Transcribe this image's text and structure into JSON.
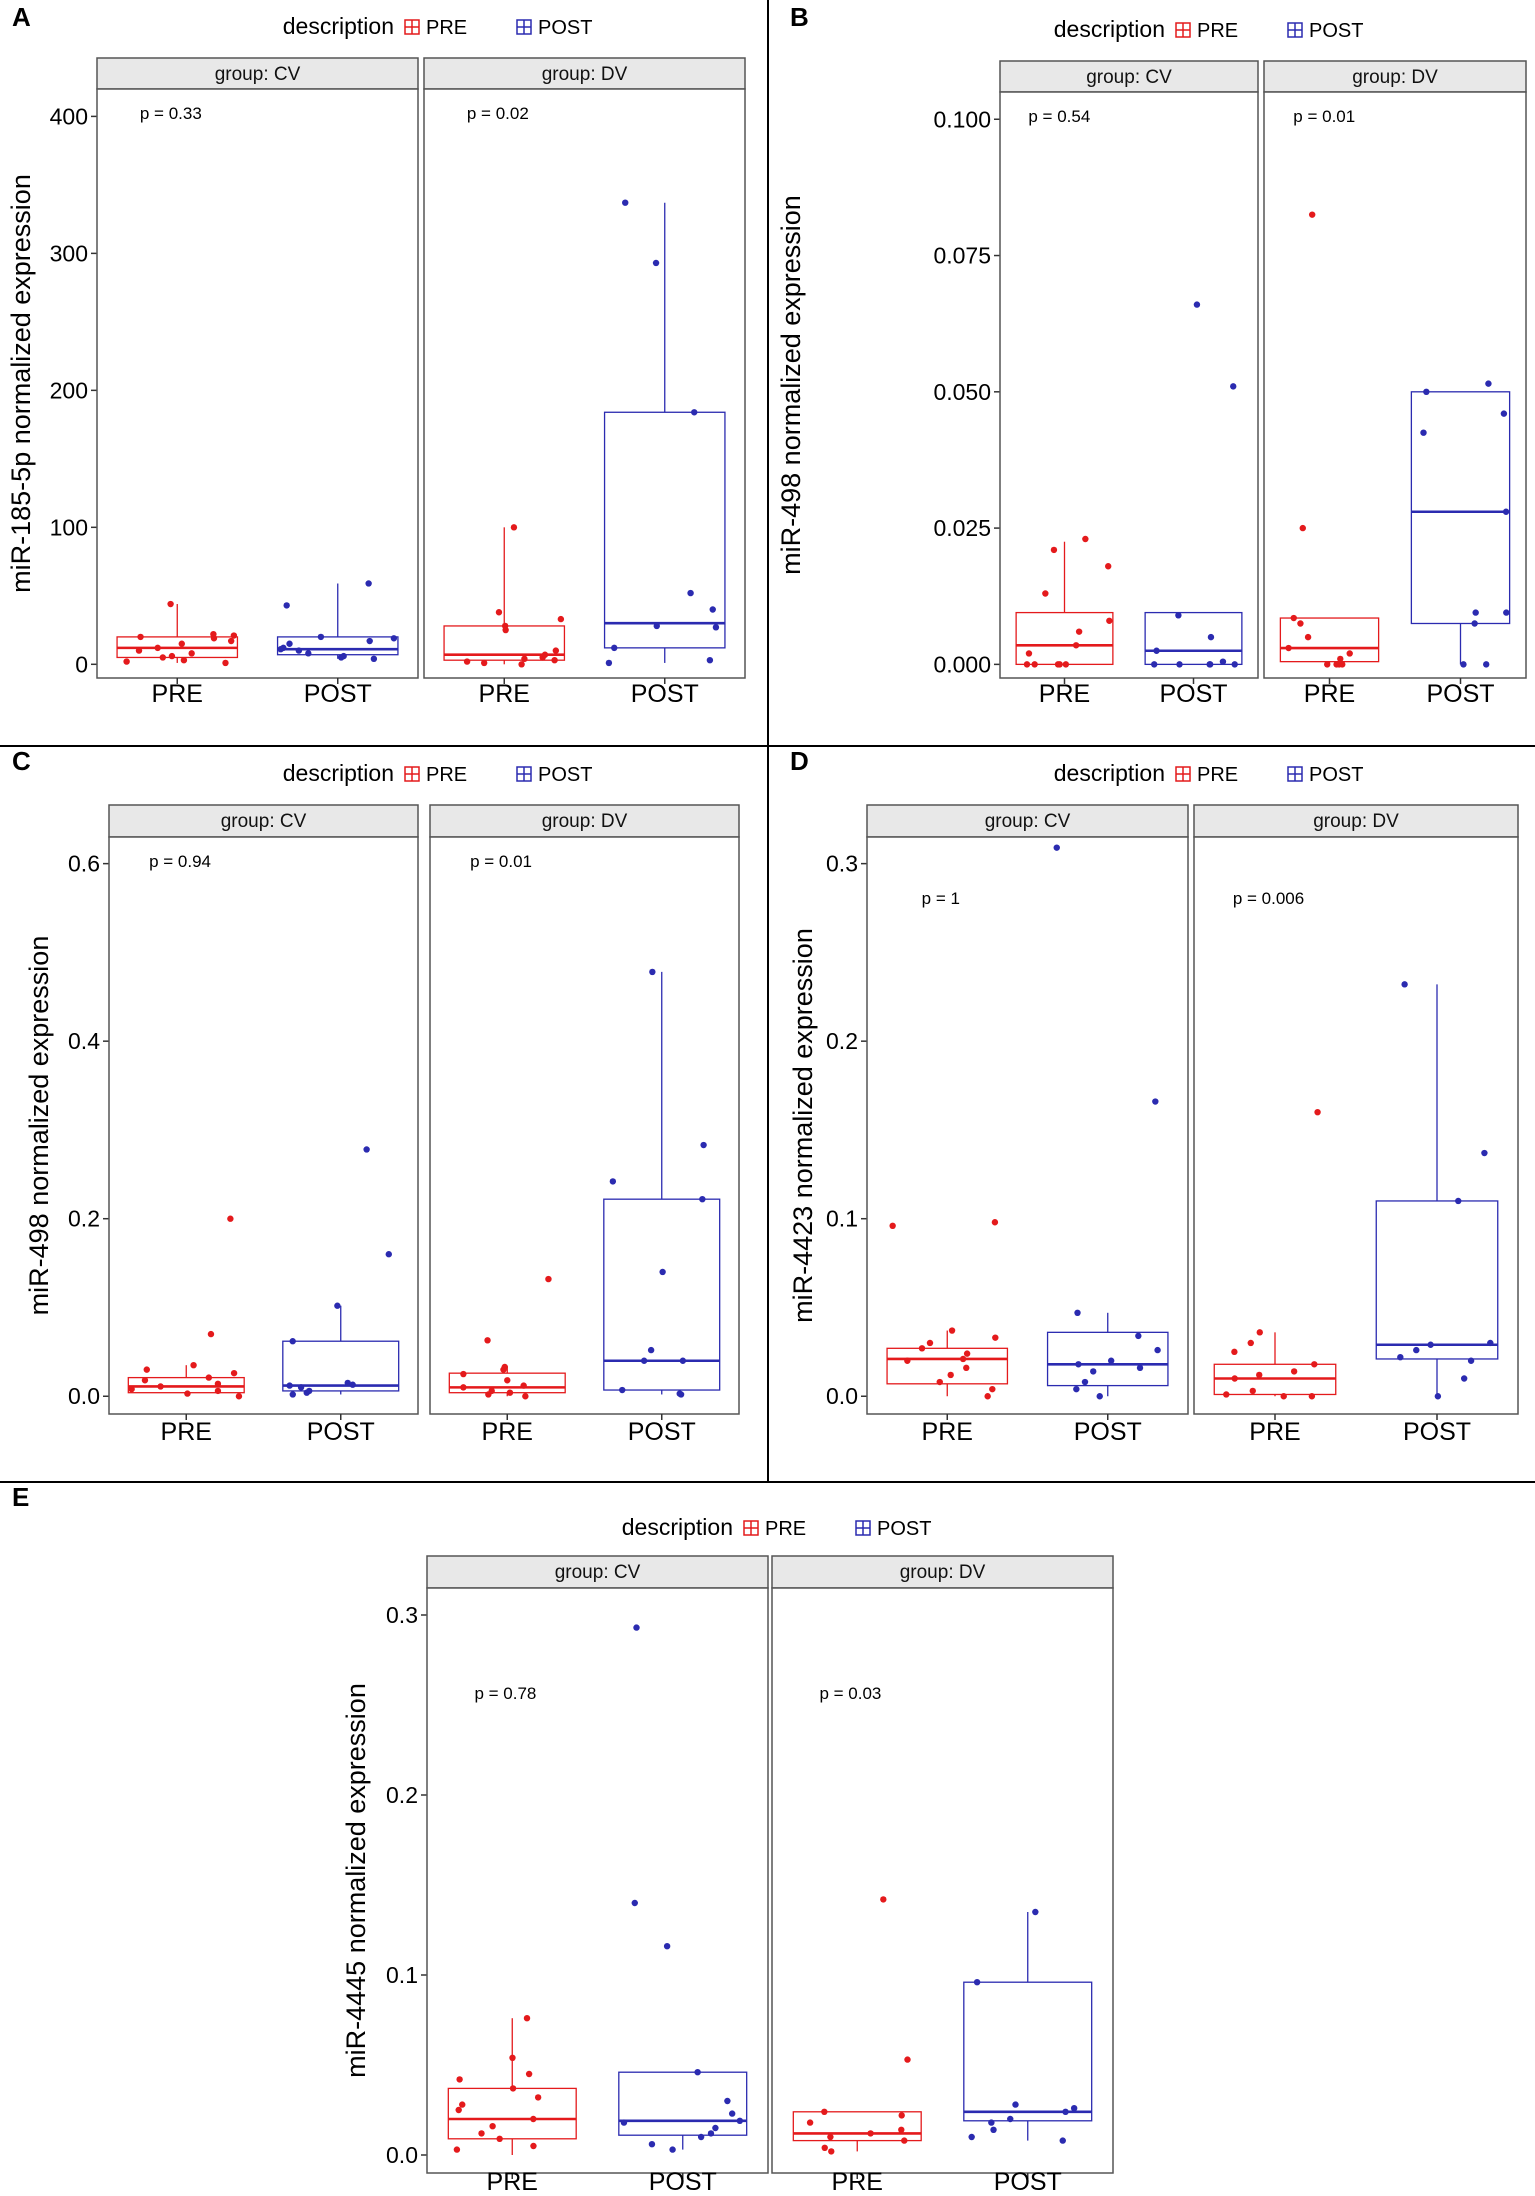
{
  "legend": {
    "title": "description",
    "pre_label": "PRE",
    "post_label": "POST"
  },
  "colors": {
    "pre": "#e41a1c",
    "post": "#2b2bb0",
    "strip": "#e8e8e8",
    "border": "#555555",
    "divider": "#000000"
  },
  "chart_data": [
    {
      "panel": "A",
      "type": "boxplot",
      "ylabel": "miR-185-5p normalized expression",
      "ylim": [
        -10,
        420
      ],
      "yticks": [
        0,
        100,
        200,
        300,
        400
      ],
      "yticklabels": [
        "0",
        "100",
        "200",
        "300",
        "400"
      ],
      "categories": [
        "PRE",
        "POST"
      ],
      "facets": [
        {
          "title": "group: CV",
          "p_label": "p = 0.33",
          "pre": {
            "q1": 5,
            "median": 12,
            "q3": 20,
            "whisker_low": 1,
            "whisker_high": 44,
            "points": [
              1,
              2,
              3,
              5,
              6,
              8,
              10,
              12,
              15,
              17,
              19,
              20,
              21,
              22,
              44
            ]
          },
          "post": {
            "q1": 7,
            "median": 11,
            "q3": 20,
            "whisker_low": 4,
            "whisker_high": 59,
            "points": [
              4,
              5,
              6,
              8,
              10,
              11,
              12,
              15,
              17,
              19,
              20,
              43,
              59
            ]
          }
        },
        {
          "title": "group: DV",
          "p_label": "p = 0.02",
          "pre": {
            "q1": 3,
            "median": 7,
            "q3": 28,
            "whisker_low": 0,
            "whisker_high": 100,
            "points": [
              0,
              1,
              2,
              3,
              4,
              5,
              7,
              10,
              25,
              28,
              33,
              38,
              100
            ]
          },
          "post": {
            "q1": 12,
            "median": 30,
            "q3": 184,
            "whisker_low": 1,
            "whisker_high": 337,
            "points": [
              1,
              3,
              12,
              27,
              28,
              40,
              52,
              184,
              293,
              337
            ]
          }
        }
      ]
    },
    {
      "panel": "B",
      "type": "boxplot",
      "ylabel": "miR-498 normalized expression",
      "ylim": [
        -0.0025,
        0.105
      ],
      "yticks": [
        0,
        0.025,
        0.05,
        0.075,
        0.1
      ],
      "yticklabels": [
        "0.000",
        "0.025",
        "0.050",
        "0.075",
        "0.100"
      ],
      "categories": [
        "PRE",
        "POST"
      ],
      "facets": [
        {
          "title": "group: CV",
          "p_label": "p = 0.54",
          "pre": {
            "q1": 0,
            "median": 0.0035,
            "q3": 0.0095,
            "whisker_low": 0,
            "whisker_high": 0.0225,
            "points": [
              0,
              0,
              0,
              0,
              0,
              0.002,
              0.0035,
              0.006,
              0.008,
              0.013,
              0.018,
              0.021,
              0.023
            ]
          },
          "post": {
            "q1": 0,
            "median": 0.0025,
            "q3": 0.0095,
            "whisker_low": 0,
            "whisker_high": 0.0095,
            "points": [
              0,
              0,
              0,
              0,
              0,
              0.0005,
              0.0025,
              0.005,
              0.009,
              0.051,
              0.066
            ]
          }
        },
        {
          "title": "group: DV",
          "p_label": "p = 0.01",
          "pre": {
            "q1": 0.0005,
            "median": 0.003,
            "q3": 0.0085,
            "whisker_low": 0,
            "whisker_high": 0.0085,
            "points": [
              0,
              0,
              0,
              0,
              0.001,
              0.002,
              0.003,
              0.005,
              0.0075,
              0.0085,
              0.025,
              0.0825
            ]
          },
          "post": {
            "q1": 0.0075,
            "median": 0.028,
            "q3": 0.05,
            "whisker_low": 0,
            "whisker_high": 0.05,
            "points": [
              0,
              0,
              0.0075,
              0.0095,
              0.0095,
              0.028,
              0.0425,
              0.046,
              0.05,
              0.0515
            ]
          }
        }
      ]
    },
    {
      "panel": "C",
      "type": "boxplot",
      "ylabel": "miR-498 normalized expression",
      "ylim": [
        -0.02,
        0.63
      ],
      "yticks": [
        0,
        0.2,
        0.4,
        0.6
      ],
      "yticklabels": [
        "0.0",
        "0.2",
        "0.4",
        "0.6"
      ],
      "categories": [
        "PRE",
        "POST"
      ],
      "facets": [
        {
          "title": "group: CV",
          "p_label": "p = 0.94",
          "pre": {
            "q1": 0.004,
            "median": 0.011,
            "q3": 0.021,
            "whisker_low": 0,
            "whisker_high": 0.035,
            "points": [
              0,
              0.003,
              0.006,
              0.008,
              0.011,
              0.014,
              0.018,
              0.021,
              0.026,
              0.03,
              0.035,
              0.07,
              0.2
            ]
          },
          "post": {
            "q1": 0.006,
            "median": 0.012,
            "q3": 0.062,
            "whisker_low": 0.002,
            "whisker_high": 0.102,
            "points": [
              0.002,
              0.004,
              0.006,
              0.01,
              0.012,
              0.013,
              0.015,
              0.062,
              0.102,
              0.16,
              0.278
            ]
          }
        },
        {
          "title": "group: DV",
          "p_label": "p = 0.01",
          "pre": {
            "q1": 0.004,
            "median": 0.01,
            "q3": 0.026,
            "whisker_low": 0,
            "whisker_high": 0.033,
            "points": [
              0,
              0.002,
              0.004,
              0.006,
              0.01,
              0.012,
              0.018,
              0.025,
              0.03,
              0.033,
              0.063,
              0.132
            ]
          },
          "post": {
            "q1": 0.007,
            "median": 0.04,
            "q3": 0.222,
            "whisker_low": 0.002,
            "whisker_high": 0.478,
            "points": [
              0.002,
              0.003,
              0.007,
              0.04,
              0.04,
              0.052,
              0.14,
              0.222,
              0.242,
              0.283,
              0.478
            ]
          }
        }
      ]
    },
    {
      "panel": "D",
      "type": "boxplot",
      "ylabel": "miR-4423 normalized expression",
      "ylim": [
        -0.01,
        0.315
      ],
      "yticks": [
        0,
        0.1,
        0.2,
        0.3
      ],
      "yticklabels": [
        "0.0",
        "0.1",
        "0.2",
        "0.3"
      ],
      "categories": [
        "PRE",
        "POST"
      ],
      "facets": [
        {
          "title": "group: CV",
          "p_label": "p = 1",
          "pre": {
            "q1": 0.007,
            "median": 0.021,
            "q3": 0.027,
            "whisker_low": 0,
            "whisker_high": 0.037,
            "points": [
              0,
              0.004,
              0.008,
              0.012,
              0.016,
              0.02,
              0.021,
              0.024,
              0.027,
              0.03,
              0.033,
              0.037,
              0.096,
              0.098
            ]
          },
          "post": {
            "q1": 0.006,
            "median": 0.018,
            "q3": 0.036,
            "whisker_low": 0,
            "whisker_high": 0.047,
            "points": [
              0,
              0.004,
              0.008,
              0.014,
              0.016,
              0.018,
              0.02,
              0.026,
              0.034,
              0.047,
              0.166,
              0.309
            ]
          }
        },
        {
          "title": "group: DV",
          "p_label": "p = 0.006",
          "pre": {
            "q1": 0.001,
            "median": 0.01,
            "q3": 0.018,
            "whisker_low": 0,
            "whisker_high": 0.036,
            "points": [
              0,
              0,
              0.001,
              0.003,
              0.01,
              0.012,
              0.014,
              0.018,
              0.025,
              0.03,
              0.036,
              0.16
            ]
          },
          "post": {
            "q1": 0.021,
            "median": 0.029,
            "q3": 0.11,
            "whisker_low": 0,
            "whisker_high": 0.232,
            "points": [
              0,
              0.01,
              0.02,
              0.022,
              0.026,
              0.029,
              0.03,
              0.11,
              0.137,
              0.232
            ]
          }
        }
      ]
    },
    {
      "panel": "E",
      "type": "boxplot",
      "ylabel": "miR-4445 normalized expression",
      "ylim": [
        -0.01,
        0.315
      ],
      "yticks": [
        0,
        0.1,
        0.2,
        0.3
      ],
      "yticklabels": [
        "0.0",
        "0.1",
        "0.2",
        "0.3"
      ],
      "categories": [
        "PRE",
        "POST"
      ],
      "facets": [
        {
          "title": "group: CV",
          "p_label": "p = 0.78",
          "pre": {
            "q1": 0.009,
            "median": 0.02,
            "q3": 0.037,
            "whisker_low": 0,
            "whisker_high": 0.076,
            "points": [
              0.003,
              0.005,
              0.009,
              0.012,
              0.016,
              0.02,
              0.025,
              0.028,
              0.032,
              0.037,
              0.042,
              0.045,
              0.054,
              0.076
            ]
          },
          "post": {
            "q1": 0.011,
            "median": 0.019,
            "q3": 0.046,
            "whisker_low": 0.003,
            "whisker_high": 0.046,
            "points": [
              0.003,
              0.006,
              0.01,
              0.012,
              0.015,
              0.018,
              0.019,
              0.023,
              0.03,
              0.046,
              0.116,
              0.14,
              0.293
            ]
          }
        },
        {
          "title": "group: DV",
          "p_label": "p = 0.03",
          "pre": {
            "q1": 0.008,
            "median": 0.012,
            "q3": 0.024,
            "whisker_low": 0.002,
            "whisker_high": 0.024,
            "points": [
              0.002,
              0.004,
              0.008,
              0.01,
              0.012,
              0.014,
              0.018,
              0.022,
              0.024,
              0.053,
              0.142
            ]
          },
          "post": {
            "q1": 0.019,
            "median": 0.024,
            "q3": 0.096,
            "whisker_low": 0.008,
            "whisker_high": 0.135,
            "points": [
              0.008,
              0.01,
              0.014,
              0.018,
              0.02,
              0.024,
              0.026,
              0.028,
              0.096,
              0.135
            ]
          }
        }
      ]
    }
  ]
}
